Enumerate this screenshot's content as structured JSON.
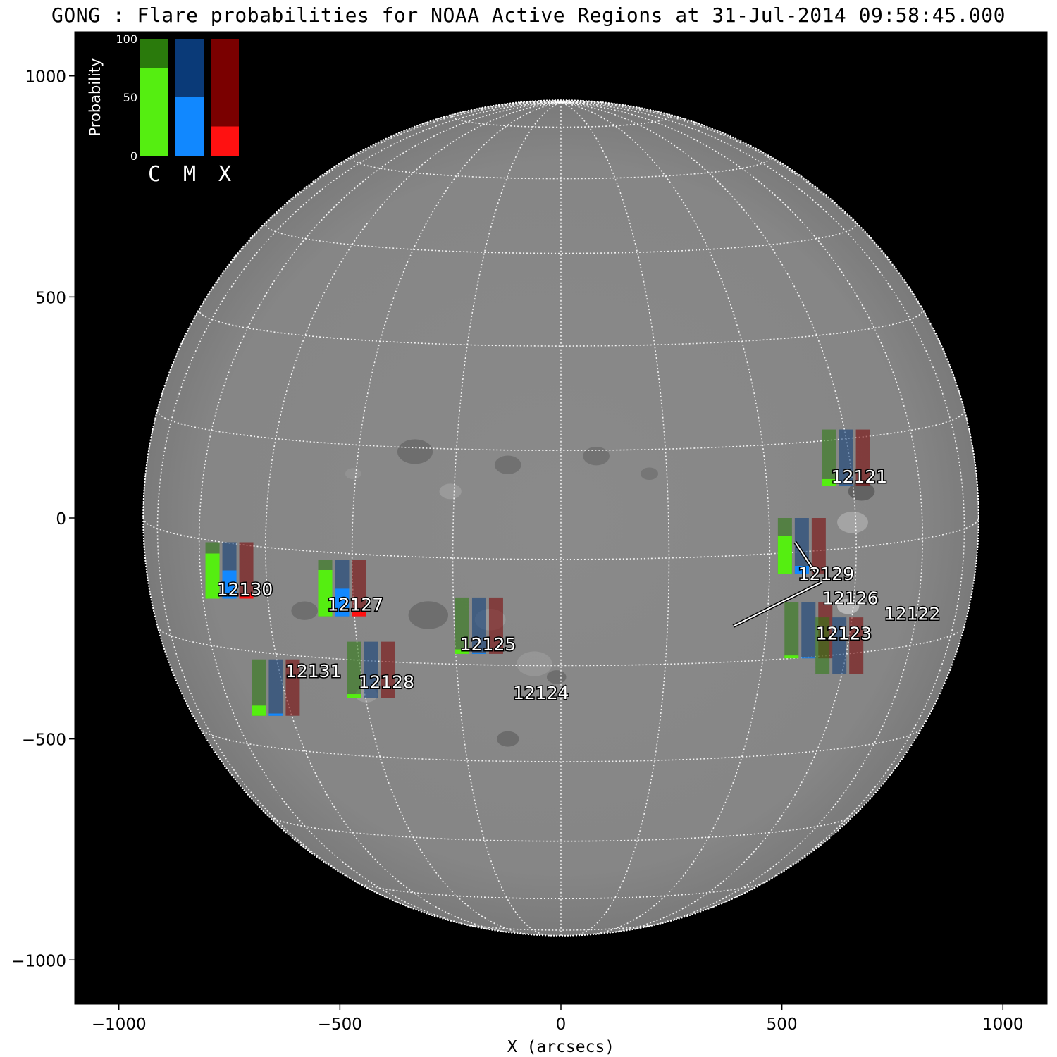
{
  "chart_data": {
    "type": "bar",
    "title": "GONG : Flare probabilities for NOAA Active Regions at 31-Jul-2014 09:58:45.000",
    "xlabel": "X (arcsecs)",
    "ylabel": "",
    "xlim": [
      -1100,
      1100
    ],
    "ylim": [
      -1100,
      1100
    ],
    "x_ticks": [
      -1000,
      -500,
      0,
      500,
      1000
    ],
    "y_ticks": [
      -1000,
      -500,
      0,
      500,
      1000
    ],
    "x_tick_labels": [
      "−1000",
      "−500",
      "0",
      "500",
      "1000"
    ],
    "y_tick_labels": [
      "−1000",
      "−500",
      "0",
      "500",
      "1000"
    ],
    "solar_radius_arcsec": 945,
    "categories": [
      "C",
      "M",
      "X"
    ],
    "series_colors": {
      "C": {
        "fill": "#55ee11",
        "bg": "#2a7a0c"
      },
      "M": {
        "fill": "#1188ff",
        "bg": "#0a3a78"
      },
      "X": {
        "fill": "#ff1111",
        "bg": "#7a0000"
      }
    },
    "legend": {
      "axis_label": "Probability",
      "tick_labels": [
        "0",
        "50",
        "100"
      ],
      "values": [
        75,
        50,
        25
      ]
    },
    "regions": [
      {
        "name": "12121",
        "x": 645,
        "y": 200,
        "label": [
          675,
          80
        ],
        "c": 12,
        "m": 1,
        "x_prob": 0
      },
      {
        "name": "12129",
        "x": 545,
        "y": 0,
        "label": [
          600,
          -140
        ],
        "c": 68,
        "m": 15,
        "x_prob": 1,
        "leader": [
          [
            530,
            -55
          ],
          [
            580,
            -130
          ]
        ]
      },
      {
        "name": "12126",
        "x": 560,
        "y": -190,
        "label": [
          655,
          -195
        ],
        "c": 5,
        "m": 1,
        "x_prob": 0,
        "leader": [
          [
            390,
            -245
          ],
          [
            590,
            -145
          ]
        ]
      },
      {
        "name": "12122",
        "x": 0,
        "y": 0,
        "label": [
          795,
          -230
        ],
        "c": 0,
        "m": 0,
        "x_prob": 0,
        "nobars": true
      },
      {
        "name": "12123",
        "x": 630,
        "y": -225,
        "label": [
          640,
          -275
        ],
        "c": 0,
        "m": 0,
        "x_prob": 0
      },
      {
        "name": "12130",
        "x": -750,
        "y": -55,
        "label": [
          -715,
          -175
        ],
        "c": 80,
        "m": 50,
        "x_prob": 9
      },
      {
        "name": "12127",
        "x": -495,
        "y": -95,
        "label": [
          -465,
          -210
        ],
        "c": 82,
        "m": 49,
        "x_prob": 9
      },
      {
        "name": "12125",
        "x": -185,
        "y": -180,
        "label": [
          -165,
          -300
        ],
        "c": 8,
        "m": 1,
        "x_prob": 0
      },
      {
        "name": "12128",
        "x": -430,
        "y": -280,
        "label": [
          -395,
          -385
        ],
        "c": 7,
        "m": 0,
        "x_prob": 0
      },
      {
        "name": "12131",
        "x": -645,
        "y": -320,
        "label": [
          -560,
          -360
        ],
        "c": 18,
        "m": 4,
        "x_prob": 0
      },
      {
        "name": "12124",
        "x": 0,
        "y": 0,
        "label": [
          -45,
          -410
        ],
        "c": 0,
        "m": 0,
        "x_prob": 0,
        "nobars": true
      }
    ]
  }
}
